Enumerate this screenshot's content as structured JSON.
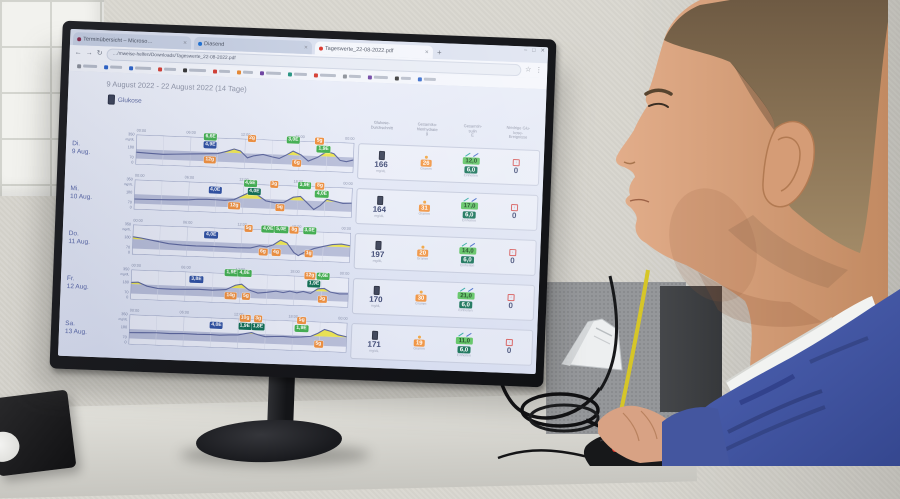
{
  "browser": {
    "tabs": [
      {
        "title": "Terminübersicht – Microso…",
        "favicon_color": "#8a2a4a",
        "active": false
      },
      {
        "title": "Diasend",
        "favicon_color": "#1a6fd4",
        "active": false
      },
      {
        "title": "Tageswerte_22-08-2022.pdf",
        "favicon_color": "#d93025",
        "active": true
      }
    ],
    "new_tab_icon": "+",
    "window_controls": [
      "–",
      "□",
      "✕"
    ],
    "nav": {
      "back": "←",
      "forward": "→",
      "reload": "↻"
    },
    "url": "…/mweise-helfen/Downloads/Tageswerte_22-08-2022.pdf",
    "star_icon": "☆",
    "menu_icon": "⋮",
    "bookmarks": [
      {
        "color": "#8a8f98",
        "w": 14
      },
      {
        "color": "#2a62c9",
        "w": 12
      },
      {
        "color": "#2a62c9",
        "w": 16
      },
      {
        "color": "#d43a2f",
        "w": 12
      },
      {
        "color": "#333333",
        "w": 17
      },
      {
        "color": "#d43a2f",
        "w": 11
      },
      {
        "color": "#e8862c",
        "w": 10
      },
      {
        "color": "#6b3fa0",
        "w": 15
      },
      {
        "color": "#22927f",
        "w": 13
      },
      {
        "color": "#d43a2f",
        "w": 16
      },
      {
        "color": "#8a8f98",
        "w": 12
      },
      {
        "color": "#6b3fa0",
        "w": 14
      },
      {
        "color": "#333333",
        "w": 10
      },
      {
        "color": "#2a62c9",
        "w": 12
      }
    ]
  },
  "report": {
    "title": "9 August 2022 - 22 August 2022 (14 Tage)",
    "series_label": "Glukose",
    "time_labels": [
      "00:00",
      "06:00",
      "12:00",
      "18:00",
      "00:00"
    ],
    "y_axis": {
      "max": "350",
      "unit": "mg/dL",
      "band_top": "180",
      "band_bottom": "70",
      "min": "0"
    },
    "columns": [
      {
        "label": "Glukose-\nDurchschnitt"
      },
      {
        "label": "Gesamtko-\nhlenhydrate\ng"
      },
      {
        "label": "Gesamtin-\nsulin\nE"
      },
      {
        "label": "Niedrige Glu-\nkose-\nEreignisse"
      }
    ],
    "units": {
      "glucose": "mg/dL",
      "carbs": "Gramm",
      "insulin": "Einheiten"
    },
    "low_icon": "↓"
  },
  "chart_data": {
    "type": "line",
    "x_unit": "hour_of_day",
    "x_range": [
      0,
      24
    ],
    "y_range": [
      0,
      350
    ],
    "target_band": [
      70,
      180
    ],
    "band_color": "#b7bdd8",
    "above_range_fill": "#ece44e",
    "line_color": "#59639a",
    "days": [
      {
        "label": "Di.",
        "date": "9 Aug.",
        "avg_glucose": "166",
        "carbs_g": "26",
        "bolus_units": "12,0",
        "basal_units": "6,0",
        "low_events": "0",
        "curve": [
          [
            0,
            145
          ],
          [
            1.5,
            138
          ],
          [
            3,
            132
          ],
          [
            4.5,
            140
          ],
          [
            6,
            148
          ],
          [
            7.5,
            155
          ],
          [
            9,
            165
          ],
          [
            10,
            195
          ],
          [
            10.8,
            225
          ],
          [
            11.5,
            205
          ],
          [
            12.3,
            128
          ],
          [
            13,
            155
          ],
          [
            14,
            175
          ],
          [
            15,
            150
          ],
          [
            15.8,
            135
          ],
          [
            16.5,
            175
          ],
          [
            17.3,
            228
          ],
          [
            18.2,
            185
          ],
          [
            19,
            118
          ],
          [
            20,
            165
          ],
          [
            21,
            238
          ],
          [
            21.8,
            215
          ],
          [
            22.5,
            140
          ],
          [
            23.2,
            128
          ],
          [
            24,
            152
          ]
        ],
        "badges": [
          {
            "x": 0.34,
            "lane": 0,
            "type": "bolus",
            "label": "6,6E"
          },
          {
            "x": 0.34,
            "lane": 1,
            "type": "basal",
            "label": "4,9E"
          },
          {
            "x": 0.34,
            "lane": "low",
            "type": "carb",
            "label": "12g"
          },
          {
            "x": 0.53,
            "lane": 0,
            "type": "carb",
            "label": "2g"
          },
          {
            "x": 0.72,
            "lane": 0,
            "type": "bolus",
            "label": "3,0E"
          },
          {
            "x": 0.74,
            "lane": "low",
            "type": "carb",
            "label": "6g"
          },
          {
            "x": 0.84,
            "lane": 0,
            "type": "carb",
            "label": "5g"
          },
          {
            "x": 0.86,
            "lane": 1,
            "type": "bolus",
            "label": "1,9E"
          }
        ]
      },
      {
        "label": "Mi.",
        "date": "10 Aug.",
        "avg_glucose": "164",
        "carbs_g": "31",
        "bolus_units": "17,0",
        "basal_units": "6,0",
        "low_events": "0",
        "curve": [
          [
            0,
            122
          ],
          [
            2,
            125
          ],
          [
            4,
            130
          ],
          [
            6,
            138
          ],
          [
            7,
            148
          ],
          [
            8,
            152
          ],
          [
            9,
            150
          ],
          [
            10,
            148
          ],
          [
            11,
            160
          ],
          [
            12,
            215
          ],
          [
            12.8,
            258
          ],
          [
            13.5,
            230
          ],
          [
            14.5,
            160
          ],
          [
            15.5,
            142
          ],
          [
            16.5,
            150
          ],
          [
            17.5,
            215
          ],
          [
            18.3,
            228
          ],
          [
            19,
            160
          ],
          [
            19.8,
            80
          ],
          [
            20.5,
            130
          ],
          [
            21.2,
            205
          ],
          [
            22,
            188
          ],
          [
            23,
            165
          ],
          [
            24,
            172
          ]
        ],
        "badges": [
          {
            "x": 0.37,
            "lane": 1,
            "type": "basal",
            "label": "4,0E"
          },
          {
            "x": 0.46,
            "lane": "low",
            "type": "carb",
            "label": "12g"
          },
          {
            "x": 0.53,
            "lane": 0,
            "type": "bolus",
            "label": "4,6E"
          },
          {
            "x": 0.55,
            "lane": 1,
            "type": "bolusd",
            "label": "4,0E"
          },
          {
            "x": 0.64,
            "lane": 0,
            "type": "carb",
            "label": "3g"
          },
          {
            "x": 0.67,
            "lane": "low",
            "type": "carb",
            "label": "5g"
          },
          {
            "x": 0.78,
            "lane": 0,
            "type": "bolus",
            "label": "3,9E"
          },
          {
            "x": 0.85,
            "lane": 0,
            "type": "carb",
            "label": "8g"
          },
          {
            "x": 0.86,
            "lane": 1,
            "type": "bolus",
            "label": "4,0E"
          }
        ]
      },
      {
        "label": "Do.",
        "date": "11 Aug.",
        "avg_glucose": "197",
        "carbs_g": "20",
        "bolus_units": "14,0",
        "basal_units": "6,0",
        "low_events": "0",
        "curve": [
          [
            0,
            208
          ],
          [
            1,
            195
          ],
          [
            2.5,
            168
          ],
          [
            4,
            142
          ],
          [
            5.5,
            132
          ],
          [
            7,
            128
          ],
          [
            8.5,
            130
          ],
          [
            10,
            128
          ],
          [
            11.5,
            126
          ],
          [
            13,
            130
          ],
          [
            14,
            158
          ],
          [
            14.8,
            148
          ],
          [
            15.5,
            175
          ],
          [
            16.3,
            235
          ],
          [
            17,
            205
          ],
          [
            17.8,
            95
          ],
          [
            18.3,
            62
          ],
          [
            19,
            105
          ],
          [
            20,
            150
          ],
          [
            21,
            180
          ],
          [
            22,
            205
          ],
          [
            23,
            215
          ],
          [
            24,
            200
          ]
        ],
        "badges": [
          {
            "x": 0.36,
            "lane": 1,
            "type": "basal",
            "label": "4,0E"
          },
          {
            "x": 0.53,
            "lane": 0,
            "type": "carb",
            "label": "5g"
          },
          {
            "x": 0.62,
            "lane": 0,
            "type": "bolus",
            "label": "4,0E"
          },
          {
            "x": 0.68,
            "lane": 0,
            "type": "bolus",
            "label": "5,0E"
          },
          {
            "x": 0.6,
            "lane": "low",
            "type": "carb",
            "label": "6g"
          },
          {
            "x": 0.66,
            "lane": "low",
            "type": "carb",
            "label": "4g"
          },
          {
            "x": 0.74,
            "lane": 0,
            "type": "carb",
            "label": "8g"
          },
          {
            "x": 0.81,
            "lane": 0,
            "type": "bolus",
            "label": "3,0E"
          },
          {
            "x": 0.81,
            "lane": "low",
            "type": "carb",
            "label": "1g"
          }
        ]
      },
      {
        "label": "Fr.",
        "date": "12 Aug.",
        "avg_glucose": "170",
        "carbs_g": "30",
        "bolus_units": "21,0",
        "basal_units": "6,0",
        "low_events": "0",
        "curve": [
          [
            0,
            198
          ],
          [
            0.8,
            205
          ],
          [
            1.8,
            162
          ],
          [
            3,
            140
          ],
          [
            4.5,
            138
          ],
          [
            6,
            142
          ],
          [
            7.5,
            148
          ],
          [
            9,
            145
          ],
          [
            10.5,
            158
          ],
          [
            11.5,
            212
          ],
          [
            12.2,
            228
          ],
          [
            13,
            165
          ],
          [
            14,
            132
          ],
          [
            15,
            145
          ],
          [
            16,
            162
          ],
          [
            16.8,
            148
          ],
          [
            17.5,
            168
          ],
          [
            18.3,
            152
          ],
          [
            19,
            170
          ],
          [
            19.8,
            150
          ],
          [
            20.6,
            208
          ],
          [
            21.3,
            215
          ],
          [
            22,
            175
          ],
          [
            23,
            158
          ],
          [
            24,
            162
          ]
        ],
        "badges": [
          {
            "x": 0.3,
            "lane": 1,
            "type": "basal",
            "label": "3,8E"
          },
          {
            "x": 0.46,
            "lane": 0,
            "type": "bolus",
            "label": "1,9E"
          },
          {
            "x": 0.52,
            "lane": 0,
            "type": "bolus",
            "label": "4,0E"
          },
          {
            "x": 0.46,
            "lane": "low",
            "type": "carb",
            "label": "14g"
          },
          {
            "x": 0.53,
            "lane": "low",
            "type": "carb",
            "label": "5g"
          },
          {
            "x": 0.82,
            "lane": 0,
            "type": "carb",
            "label": "12g"
          },
          {
            "x": 0.88,
            "lane": 0,
            "type": "bolus",
            "label": "4,6E"
          },
          {
            "x": 0.84,
            "lane": 1,
            "type": "bolusd",
            "label": "1,9E"
          },
          {
            "x": 0.88,
            "lane": "low",
            "type": "carb",
            "label": "3g"
          }
        ]
      },
      {
        "label": "Sa.",
        "date": "13 Aug.",
        "avg_glucose": "171",
        "carbs_g": "19",
        "bolus_units": "11,0",
        "basal_units": "6,0",
        "low_events": "0",
        "curve": [
          [
            0,
            138
          ],
          [
            1.5,
            142
          ],
          [
            3,
            148
          ],
          [
            4.5,
            145
          ],
          [
            6,
            150
          ],
          [
            7.5,
            148
          ],
          [
            9,
            152
          ],
          [
            10,
            148
          ],
          [
            11,
            155
          ],
          [
            12,
            160
          ],
          [
            12.8,
            178
          ],
          [
            13.5,
            192
          ],
          [
            14.2,
            170
          ],
          [
            15,
            152
          ],
          [
            16,
            158
          ],
          [
            17,
            162
          ],
          [
            18,
            158
          ],
          [
            19,
            165
          ],
          [
            20,
            175
          ],
          [
            20.8,
            215
          ],
          [
            21.5,
            262
          ],
          [
            22.3,
            240
          ],
          [
            23,
            205
          ],
          [
            24,
            185
          ]
        ],
        "badges": [
          {
            "x": 0.4,
            "lane": 1,
            "type": "basal",
            "label": "4,0E"
          },
          {
            "x": 0.53,
            "lane": 0,
            "type": "carb",
            "label": "10g"
          },
          {
            "x": 0.59,
            "lane": 0,
            "type": "carb",
            "label": "3g"
          },
          {
            "x": 0.53,
            "lane": 1,
            "type": "bolusd",
            "label": "1,9E"
          },
          {
            "x": 0.59,
            "lane": 1,
            "type": "bolusd",
            "label": "1,8E"
          },
          {
            "x": 0.79,
            "lane": 0,
            "type": "carb",
            "label": "5g"
          },
          {
            "x": 0.79,
            "lane": 1,
            "type": "bolus",
            "label": "1,9E"
          },
          {
            "x": 0.87,
            "lane": "low",
            "type": "carb",
            "label": "5g"
          }
        ]
      }
    ]
  }
}
